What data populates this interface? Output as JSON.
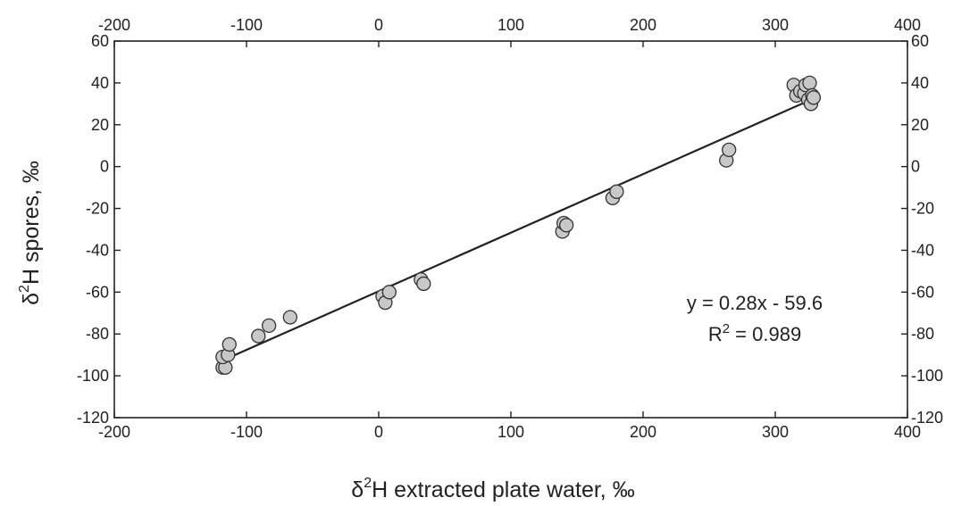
{
  "chart_data": {
    "type": "scatter",
    "xlabel": {
      "symbol": "δ",
      "sup": "2",
      "rest": "H extracted plate water, ‰"
    },
    "ylabel": {
      "symbol": "δ",
      "sup": "2",
      "rest": "H spores, ‰"
    },
    "xlim": [
      -200,
      400
    ],
    "ylim": [
      -120,
      60
    ],
    "xticks": [
      -200,
      -100,
      0,
      100,
      200,
      300,
      400
    ],
    "yticks": [
      -120,
      -100,
      -80,
      -60,
      -40,
      -20,
      0,
      20,
      40,
      60
    ],
    "grid": false,
    "series": [
      {
        "points": [
          [
            -118,
            -96
          ],
          [
            -116,
            -96
          ],
          [
            -118,
            -91
          ],
          [
            -114,
            -90
          ],
          [
            -113,
            -85
          ],
          [
            -91,
            -81
          ],
          [
            -83,
            -76
          ],
          [
            -67,
            -72
          ],
          [
            3,
            -62
          ],
          [
            5,
            -65
          ],
          [
            8,
            -60
          ],
          [
            32,
            -54
          ],
          [
            34,
            -56
          ],
          [
            139,
            -31
          ],
          [
            140,
            -27
          ],
          [
            142,
            -28
          ],
          [
            177,
            -15
          ],
          [
            180,
            -12
          ],
          [
            263,
            3
          ],
          [
            265,
            8
          ],
          [
            314,
            39
          ],
          [
            316,
            34
          ],
          [
            319,
            36
          ],
          [
            322,
            35
          ],
          [
            323,
            39
          ],
          [
            325,
            32
          ],
          [
            326,
            40
          ],
          [
            327,
            30
          ],
          [
            328,
            34
          ],
          [
            329,
            33
          ]
        ],
        "marker_fill": "#c8c8c8",
        "marker_stroke": "#333333"
      }
    ],
    "fit": {
      "slope": 0.28,
      "intercept": -59.6,
      "x_range": [
        -118,
        327
      ]
    },
    "annotations": {
      "equation": "y = 0.28x - 59.6",
      "r2_prefix": "R",
      "r2_sup": "2",
      "r2_value": " = 0.989"
    }
  }
}
